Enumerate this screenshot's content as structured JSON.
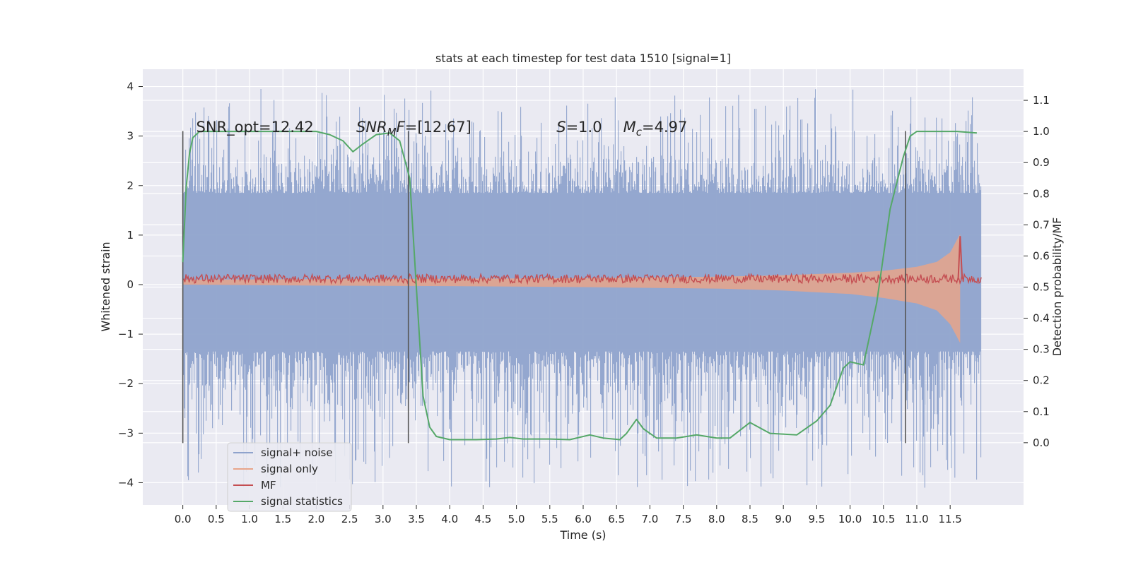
{
  "chart_data": {
    "type": "line",
    "title": "stats at each timestep for test data 1510 [signal=1]",
    "xlabel": "Time (s)",
    "ylabel": "Whitened strain",
    "y2label": "Detection probability/MF",
    "xlim": [
      -0.6,
      12.6
    ],
    "ylim": [
      -4.45,
      4.35
    ],
    "y2lim": [
      -0.2,
      1.2
    ],
    "x_ticks": [
      "0.0",
      "0.5",
      "1.0",
      "1.5",
      "2.0",
      "2.5",
      "3.0",
      "3.5",
      "4.0",
      "4.5",
      "5.0",
      "5.5",
      "6.0",
      "6.5",
      "7.0",
      "7.5",
      "8.0",
      "8.5",
      "9.0",
      "9.5",
      "10.0",
      "10.5",
      "11.0",
      "11.5"
    ],
    "y_ticks": [
      "−4",
      "−3",
      "−2",
      "−1",
      "0",
      "1",
      "2",
      "3",
      "4"
    ],
    "y2_ticks": [
      "0.0",
      "0.1",
      "0.2",
      "0.3",
      "0.4",
      "0.5",
      "0.6",
      "0.7",
      "0.8",
      "0.9",
      "1.0",
      "1.1"
    ],
    "grid": true,
    "legend_position": "lower-left",
    "colors": {
      "background": "#eaeaf2",
      "grid": "#ffffff",
      "noise": "#8fa3cc",
      "signal_only": "#e8a58a",
      "mf": "#c44e52",
      "stats": "#55a868",
      "vlines": "#555555"
    },
    "annotations": [
      {
        "parts": [
          {
            "t": "SNR_opt=12.42"
          }
        ],
        "x": 0.2,
        "y": 3.08
      },
      {
        "parts": [
          {
            "t": "SNR",
            "i": true
          },
          {
            "t": "M",
            "i": true,
            "sub": true
          },
          {
            "t": "F",
            "i": true
          },
          {
            "t": "=[12.67]"
          }
        ],
        "x": 2.6,
        "y": 3.08
      },
      {
        "parts": [
          {
            "t": "S",
            "i": true
          },
          {
            "t": "=1.0"
          }
        ],
        "x": 5.6,
        "y": 3.08
      },
      {
        "parts": [
          {
            "t": "M",
            "i": true
          },
          {
            "t": "c",
            "i": true,
            "sub": true
          },
          {
            "t": "=4.97"
          }
        ],
        "x": 6.6,
        "y": 3.08
      }
    ],
    "vertical_lines": [
      {
        "x": 0.0,
        "y_min": -3.2,
        "y_max": 3.1
      },
      {
        "x": 3.38,
        "y_min": -3.2,
        "y_max": 3.1
      },
      {
        "x": 10.83,
        "y_min": -3.2,
        "y_max": 3.1
      }
    ],
    "series": [
      {
        "name": "signal+ noise",
        "style": "dense-vertical-noise",
        "x_range": [
          0.0,
          11.97
        ],
        "band": [
          -1.35,
          1.85
        ],
        "max": 3.95,
        "min": -4.1,
        "peaks": [
          [
            1.17,
            3.95
          ],
          [
            6.48,
            3.78
          ],
          [
            8.33,
            3.83
          ],
          [
            11.12,
            -4.1
          ],
          [
            3.1,
            -3.5
          ],
          [
            6.95,
            -3.85
          ],
          [
            11.57,
            -3.9
          ]
        ]
      },
      {
        "name": "signal only",
        "style": "chirp-envelope",
        "x": [
          0.0,
          2.0,
          4.0,
          6.0,
          8.0,
          9.0,
          10.0,
          10.5,
          11.0,
          11.3,
          11.5,
          11.6,
          11.65
        ],
        "upper": [
          0.1,
          0.11,
          0.12,
          0.13,
          0.16,
          0.19,
          0.24,
          0.28,
          0.36,
          0.46,
          0.65,
          0.9,
          1.02
        ],
        "lower": [
          0.0,
          -0.02,
          -0.03,
          -0.05,
          -0.08,
          -0.12,
          -0.19,
          -0.27,
          -0.38,
          -0.52,
          -0.8,
          -1.05,
          -1.18
        ]
      },
      {
        "name": "MF",
        "style": "noisy-band",
        "x_range": [
          0.0,
          11.97
        ],
        "center": 0.12,
        "amplitude": 0.09,
        "spike": {
          "x": 11.65,
          "y": 0.98
        }
      },
      {
        "name": "signal statistics",
        "axis": "right",
        "x": [
          0.0,
          0.05,
          0.1,
          0.15,
          0.25,
          0.5,
          1.0,
          1.5,
          2.0,
          2.2,
          2.4,
          2.55,
          2.7,
          2.9,
          3.1,
          3.25,
          3.4,
          3.5,
          3.6,
          3.7,
          3.8,
          4.0,
          4.4,
          4.7,
          4.9,
          5.1,
          5.5,
          5.8,
          6.1,
          6.3,
          6.55,
          6.65,
          6.8,
          6.9,
          7.1,
          7.4,
          7.7,
          8.0,
          8.2,
          8.5,
          8.8,
          9.2,
          9.5,
          9.7,
          9.9,
          10.0,
          10.2,
          10.4,
          10.6,
          10.8,
          10.9,
          11.0,
          11.3,
          11.6,
          11.9
        ],
        "y": [
          0.58,
          0.82,
          0.93,
          0.98,
          1.0,
          1.0,
          1.0,
          1.0,
          1.0,
          0.99,
          0.97,
          0.935,
          0.96,
          0.99,
          0.995,
          0.97,
          0.85,
          0.5,
          0.15,
          0.05,
          0.02,
          0.01,
          0.01,
          0.012,
          0.017,
          0.012,
          0.012,
          0.01,
          0.025,
          0.015,
          0.01,
          0.03,
          0.075,
          0.045,
          0.015,
          0.015,
          0.025,
          0.015,
          0.015,
          0.065,
          0.03,
          0.025,
          0.07,
          0.12,
          0.24,
          0.26,
          0.25,
          0.45,
          0.75,
          0.92,
          0.985,
          1.0,
          1.0,
          1.0,
          0.995
        ]
      }
    ]
  }
}
